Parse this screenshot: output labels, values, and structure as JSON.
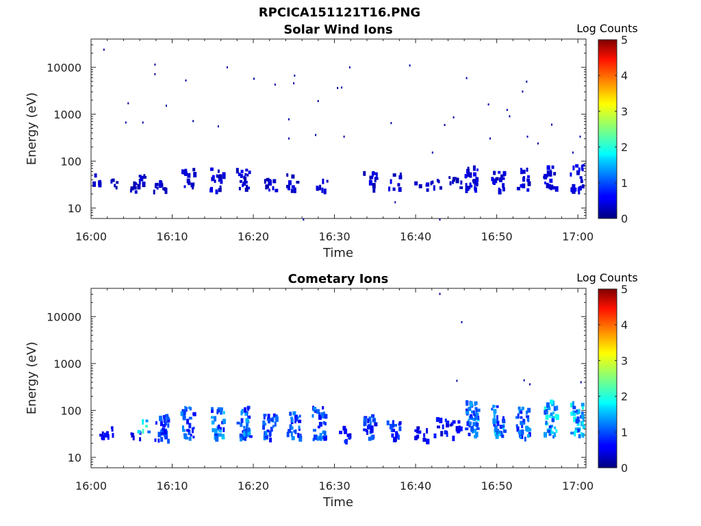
{
  "figure_title": "RPCICA151121T16.PNG",
  "chart_data": [
    {
      "type": "heatmap",
      "title": "Solar Wind Ions",
      "xlabel": "Time",
      "ylabel": "Energy (eV)",
      "x_ticks": [
        "16:00",
        "16:10",
        "16:20",
        "16:30",
        "16:40",
        "16:50",
        "17:00"
      ],
      "xlim_minutes": [
        0,
        61
      ],
      "y_ticks": [
        "10",
        "100",
        "1000",
        "10000"
      ],
      "ylim": [
        6,
        40000
      ],
      "y_scale": "log",
      "colorbar": {
        "label": "Log Counts",
        "ticks": [
          "0",
          "1",
          "2",
          "3",
          "4",
          "5"
        ],
        "range": [
          0,
          5
        ],
        "colormap": "jet"
      },
      "clusters": [
        {
          "t": 0.6,
          "e": 40,
          "spread": 0.12,
          "n": 6,
          "c": 0.3
        },
        {
          "t": 2.5,
          "e": 32,
          "spread": 0.1,
          "n": 5,
          "c": 0.3
        },
        {
          "t": 5.2,
          "e": 28,
          "spread": 0.1,
          "n": 8,
          "c": 0.35
        },
        {
          "t": 6.3,
          "e": 40,
          "spread": 0.12,
          "n": 6,
          "c": 0.35
        },
        {
          "t": 8.3,
          "e": 28,
          "spread": 0.12,
          "n": 12,
          "c": 0.4
        },
        {
          "t": 11.8,
          "e": 38,
          "spread": 0.22,
          "n": 14,
          "c": 0.4
        },
        {
          "t": 15.4,
          "e": 35,
          "spread": 0.25,
          "n": 18,
          "c": 0.4
        },
        {
          "t": 18.6,
          "e": 38,
          "spread": 0.25,
          "n": 18,
          "c": 0.45
        },
        {
          "t": 21.9,
          "e": 30,
          "spread": 0.15,
          "n": 10,
          "c": 0.4
        },
        {
          "t": 24.8,
          "e": 32,
          "spread": 0.2,
          "n": 10,
          "c": 0.4
        },
        {
          "t": 28.2,
          "e": 30,
          "spread": 0.15,
          "n": 8,
          "c": 0.4
        },
        {
          "t": 34.3,
          "e": 35,
          "spread": 0.2,
          "n": 12,
          "c": 0.4
        },
        {
          "t": 37.3,
          "e": 35,
          "spread": 0.2,
          "n": 8,
          "c": 0.4
        },
        {
          "t": 40.6,
          "e": 28,
          "spread": 0.1,
          "n": 5,
          "c": 0.35
        },
        {
          "t": 42.6,
          "e": 35,
          "spread": 0.12,
          "n": 6,
          "c": 0.35
        },
        {
          "t": 44.8,
          "e": 35,
          "spread": 0.12,
          "n": 8,
          "c": 0.35
        },
        {
          "t": 46.8,
          "e": 38,
          "spread": 0.3,
          "n": 26,
          "c": 0.45
        },
        {
          "t": 50.0,
          "e": 35,
          "spread": 0.2,
          "n": 16,
          "c": 0.45
        },
        {
          "t": 53.1,
          "e": 38,
          "spread": 0.25,
          "n": 14,
          "c": 0.45
        },
        {
          "t": 56.5,
          "e": 40,
          "spread": 0.25,
          "n": 18,
          "c": 0.45
        },
        {
          "t": 59.8,
          "e": 40,
          "spread": 0.28,
          "n": 24,
          "c": 0.45
        }
      ],
      "sparse": [
        {
          "t": 1.5,
          "e": 25000
        },
        {
          "t": 7.8,
          "e": 12000
        },
        {
          "t": 7.8,
          "e": 7500
        },
        {
          "t": 4.5,
          "e": 1800
        },
        {
          "t": 4.2,
          "e": 700
        },
        {
          "t": 6.3,
          "e": 700
        },
        {
          "t": 9.2,
          "e": 1600
        },
        {
          "t": 11.6,
          "e": 5500
        },
        {
          "t": 12.5,
          "e": 750
        },
        {
          "t": 15.6,
          "e": 580
        },
        {
          "t": 16.7,
          "e": 10500
        },
        {
          "t": 20.0,
          "e": 6000
        },
        {
          "t": 22.6,
          "e": 4500
        },
        {
          "t": 25.0,
          "e": 7000
        },
        {
          "t": 24.9,
          "e": 4800
        },
        {
          "t": 24.3,
          "e": 820
        },
        {
          "t": 24.3,
          "e": 320
        },
        {
          "t": 27.9,
          "e": 2000
        },
        {
          "t": 27.6,
          "e": 380
        },
        {
          "t": 30.3,
          "e": 3800
        },
        {
          "t": 30.8,
          "e": 3900
        },
        {
          "t": 31.8,
          "e": 10500
        },
        {
          "t": 31.1,
          "e": 350
        },
        {
          "t": 36.9,
          "e": 680
        },
        {
          "t": 39.2,
          "e": 11500
        },
        {
          "t": 42.0,
          "e": 160
        },
        {
          "t": 43.5,
          "e": 620
        },
        {
          "t": 44.6,
          "e": 900
        },
        {
          "t": 46.2,
          "e": 6200
        },
        {
          "t": 48.9,
          "e": 1700
        },
        {
          "t": 49.1,
          "e": 320
        },
        {
          "t": 51.2,
          "e": 1300
        },
        {
          "t": 51.5,
          "e": 950
        },
        {
          "t": 53.1,
          "e": 3200
        },
        {
          "t": 53.6,
          "e": 5200
        },
        {
          "t": 53.7,
          "e": 350
        },
        {
          "t": 55.0,
          "e": 250
        },
        {
          "t": 56.7,
          "e": 630
        },
        {
          "t": 59.3,
          "e": 160
        },
        {
          "t": 60.2,
          "e": 350
        },
        {
          "t": 37.4,
          "e": 14
        },
        {
          "t": 26.1,
          "e": 6
        },
        {
          "t": 42.9,
          "e": 6
        }
      ]
    },
    {
      "type": "heatmap",
      "title": "Cometary Ions",
      "xlabel": "Time",
      "ylabel": "Energy (eV)",
      "x_ticks": [
        "16:00",
        "16:10",
        "16:20",
        "16:30",
        "16:40",
        "16:50",
        "17:00"
      ],
      "xlim_minutes": [
        0,
        61
      ],
      "y_ticks": [
        "10",
        "100",
        "1000",
        "10000"
      ],
      "ylim": [
        6,
        40000
      ],
      "y_scale": "log",
      "colorbar": {
        "label": "Log Counts",
        "ticks": [
          "0",
          "1",
          "2",
          "3",
          "4",
          "5"
        ],
        "range": [
          0,
          5
        ],
        "colormap": "jet"
      },
      "clusters": [
        {
          "t": 1.8,
          "e": 35,
          "spread": 0.12,
          "n": 10,
          "c": 0.5
        },
        {
          "t": 5.2,
          "e": 30,
          "spread": 0.1,
          "n": 6,
          "c": 0.45
        },
        {
          "t": 6.4,
          "e": 45,
          "spread": 0.15,
          "n": 6,
          "c": 1.6
        },
        {
          "t": 8.6,
          "e": 40,
          "spread": 0.3,
          "n": 26,
          "c": 0.9
        },
        {
          "t": 11.8,
          "e": 45,
          "spread": 0.35,
          "n": 30,
          "c": 1.0
        },
        {
          "t": 15.5,
          "e": 45,
          "spread": 0.35,
          "n": 32,
          "c": 1.2
        },
        {
          "t": 18.7,
          "e": 45,
          "spread": 0.35,
          "n": 32,
          "c": 1.2
        },
        {
          "t": 21.9,
          "e": 42,
          "spread": 0.3,
          "n": 28,
          "c": 1.0
        },
        {
          "t": 24.9,
          "e": 42,
          "spread": 0.3,
          "n": 26,
          "c": 1.0
        },
        {
          "t": 28.0,
          "e": 45,
          "spread": 0.35,
          "n": 30,
          "c": 1.0
        },
        {
          "t": 31.0,
          "e": 30,
          "spread": 0.15,
          "n": 10,
          "c": 0.7
        },
        {
          "t": 34.2,
          "e": 40,
          "spread": 0.25,
          "n": 22,
          "c": 0.9
        },
        {
          "t": 37.2,
          "e": 35,
          "spread": 0.2,
          "n": 18,
          "c": 0.8
        },
        {
          "t": 40.6,
          "e": 30,
          "spread": 0.15,
          "n": 12,
          "c": 0.6
        },
        {
          "t": 43.0,
          "e": 40,
          "spread": 0.2,
          "n": 12,
          "c": 0.6
        },
        {
          "t": 44.9,
          "e": 35,
          "spread": 0.2,
          "n": 10,
          "c": 0.6
        },
        {
          "t": 46.8,
          "e": 55,
          "spread": 0.38,
          "n": 45,
          "c": 1.3
        },
        {
          "t": 50.0,
          "e": 50,
          "spread": 0.35,
          "n": 34,
          "c": 1.3
        },
        {
          "t": 53.1,
          "e": 45,
          "spread": 0.35,
          "n": 30,
          "c": 1.1
        },
        {
          "t": 56.5,
          "e": 55,
          "spread": 0.38,
          "n": 36,
          "c": 1.5
        },
        {
          "t": 59.8,
          "e": 55,
          "spread": 0.38,
          "n": 36,
          "c": 1.5
        }
      ],
      "sparse": [
        {
          "t": 42.9,
          "e": 32000
        },
        {
          "t": 45.0,
          "e": 450
        },
        {
          "t": 53.3,
          "e": 460
        },
        {
          "t": 54.0,
          "e": 380
        },
        {
          "t": 60.3,
          "e": 420
        },
        {
          "t": 45.6,
          "e": 8000
        }
      ]
    }
  ]
}
